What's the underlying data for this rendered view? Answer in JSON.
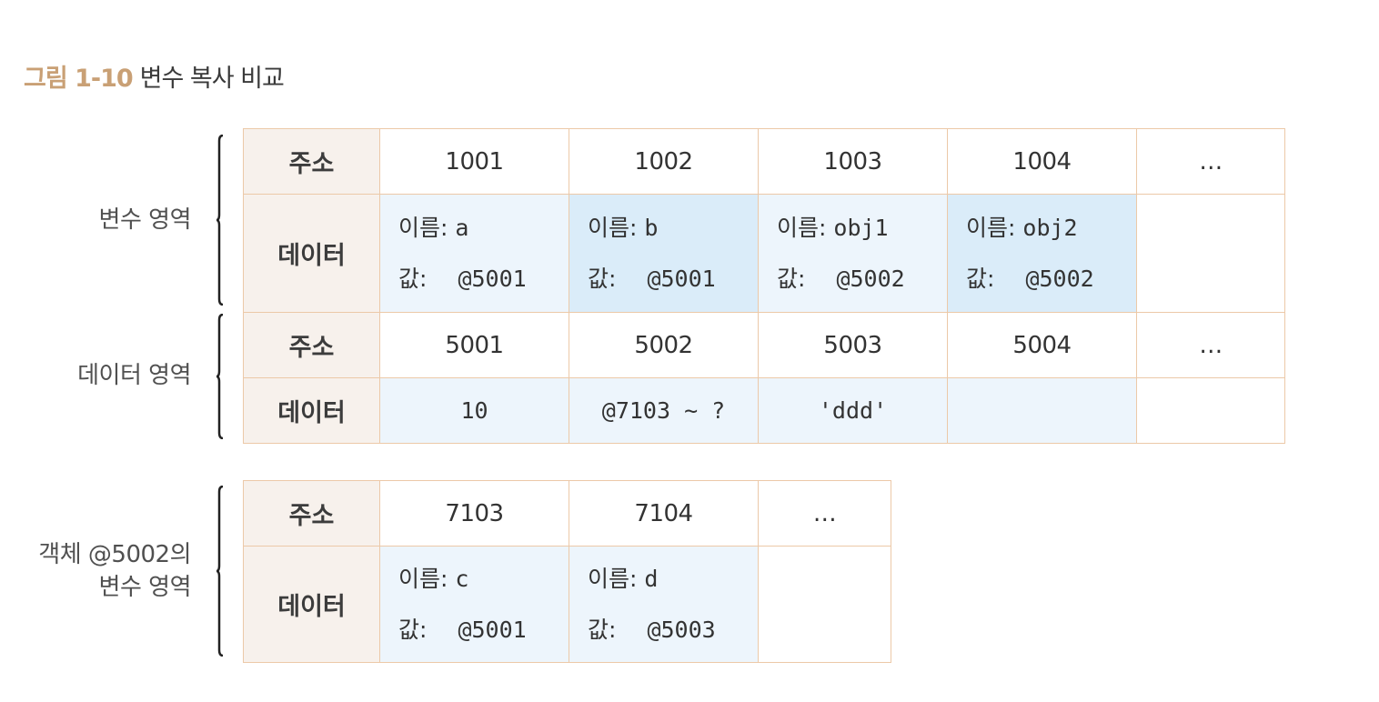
{
  "title": {
    "number": "그림 1-10",
    "text": "변수 복사 비교"
  },
  "labels": {
    "variable_area": "변수 영역",
    "data_area": "데이터 영역",
    "object_area_line1": "객체 @5002의",
    "object_area_line2": "변수 영역"
  },
  "headers": {
    "address": "주소",
    "data": "데이터"
  },
  "field_labels": {
    "name": "이름:",
    "value": "값:"
  },
  "variable_area": {
    "addresses": [
      "1001",
      "1002",
      "1003",
      "1004",
      "…"
    ],
    "cells": [
      {
        "name": "a",
        "value": "@5001"
      },
      {
        "name": "b",
        "value": "@5001"
      },
      {
        "name": "obj1",
        "value": "@5002"
      },
      {
        "name": "obj2",
        "value": "@5002"
      }
    ]
  },
  "data_area": {
    "addresses": [
      "5001",
      "5002",
      "5003",
      "5004",
      "…"
    ],
    "values": [
      "10",
      "@7103 ~ ?",
      "'ddd'",
      "",
      ""
    ]
  },
  "object_area": {
    "addresses": [
      "7103",
      "7104",
      "…"
    ],
    "cells": [
      {
        "name": "c",
        "value": "@5001"
      },
      {
        "name": "d",
        "value": "@5003"
      }
    ]
  },
  "colors": {
    "title_accent": "#c9a075",
    "border": "#ecc9a8",
    "header_bg": "#f7f1ec",
    "light_blue": "#edf5fc",
    "blue": "#daecf9"
  }
}
